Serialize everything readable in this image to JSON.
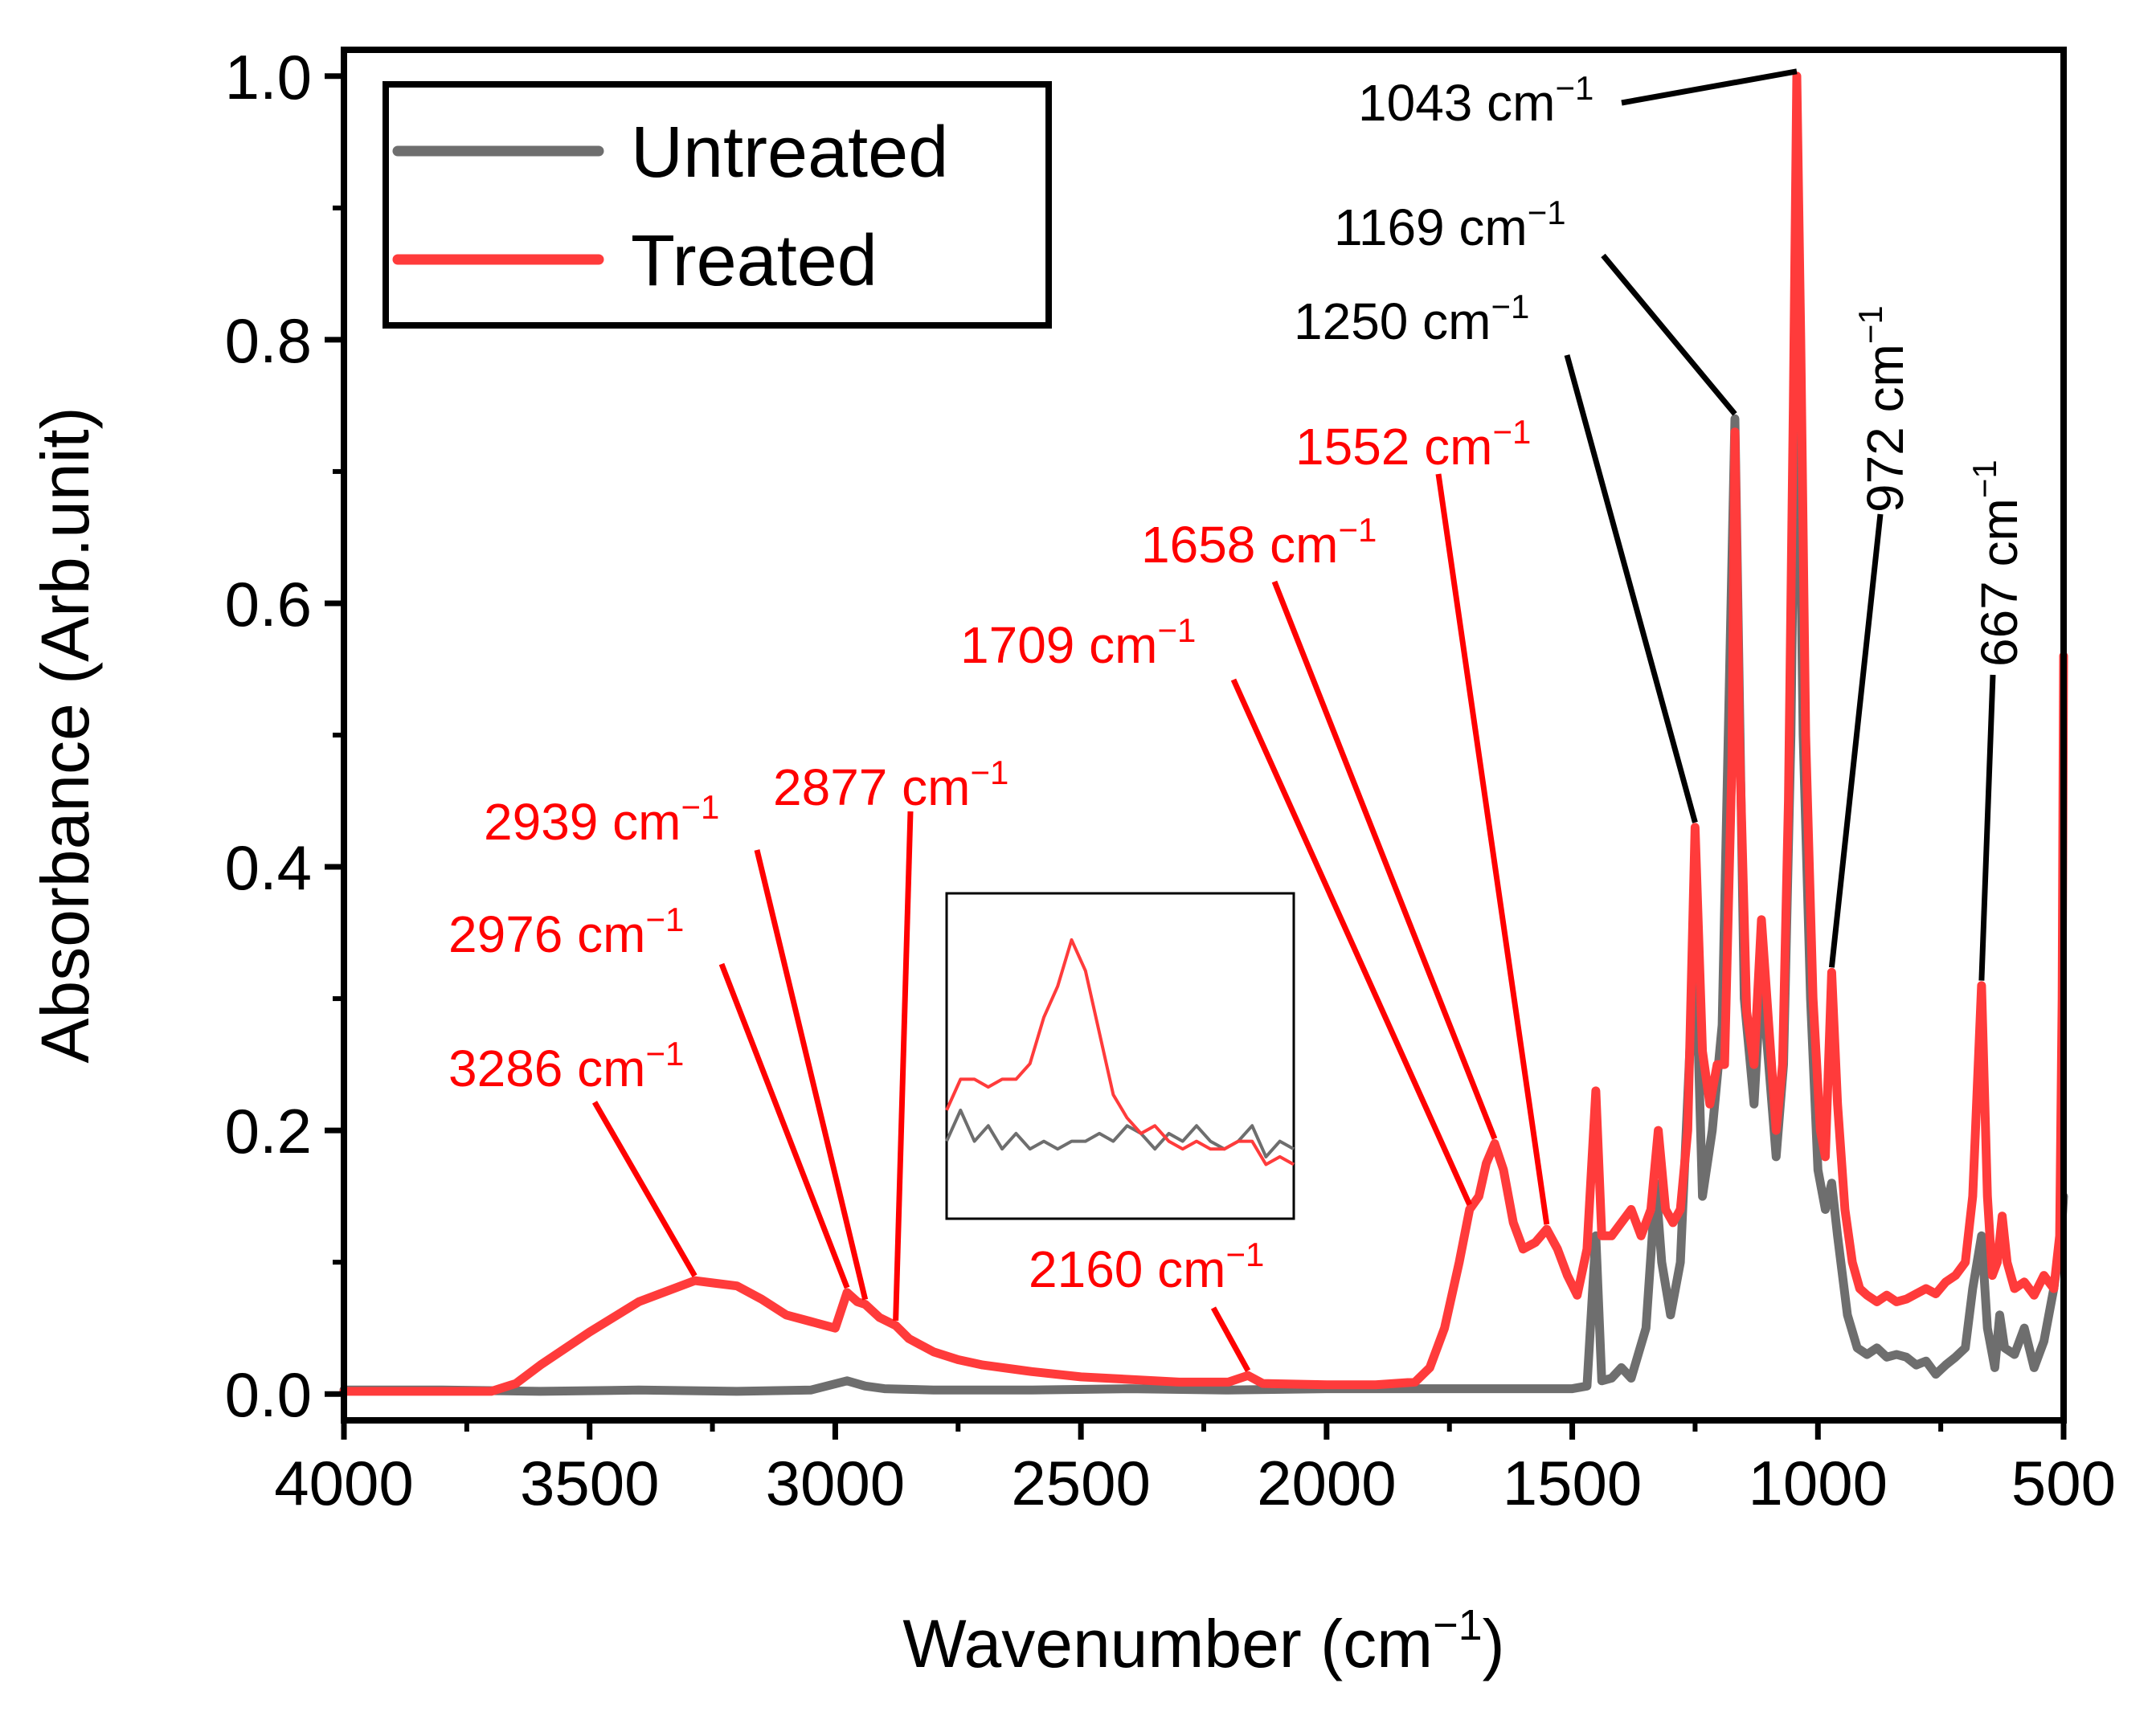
{
  "chart_data": {
    "type": "line",
    "title": "",
    "xlabel": "Wavenumber (cm",
    "xlabel_sup": "−1",
    "xlabel_tail": ")",
    "ylabel": "Absorbance (Arb.unit)",
    "xlim": [
      4000,
      500
    ],
    "ylim": [
      -0.02,
      1.02
    ],
    "x_ticks": [
      4000,
      3500,
      3000,
      2500,
      2000,
      1500,
      1000,
      500
    ],
    "x_tick_labels": [
      "4000",
      "3500",
      "3000",
      "2500",
      "2000",
      "1500",
      "1000",
      "500"
    ],
    "y_ticks": [
      0.0,
      0.2,
      0.4,
      0.6,
      0.8,
      1.0
    ],
    "y_tick_labels": [
      "0.0",
      "0.2",
      "0.4",
      "0.6",
      "0.8",
      "1.0"
    ],
    "legend": {
      "position": "top-left",
      "entries": [
        {
          "label": "Untreated",
          "color": "#6e6e6e"
        },
        {
          "label": "Treated",
          "color": "#ff3b3b"
        }
      ]
    },
    "series": [
      {
        "name": "Untreated",
        "color": "#6e6e6e",
        "points": [
          [
            4000,
            0.003
          ],
          [
            3800,
            0.003
          ],
          [
            3600,
            0.002
          ],
          [
            3400,
            0.003
          ],
          [
            3200,
            0.002
          ],
          [
            3050,
            0.003
          ],
          [
            2976,
            0.01
          ],
          [
            2939,
            0.006
          ],
          [
            2900,
            0.004
          ],
          [
            2800,
            0.003
          ],
          [
            2600,
            0.003
          ],
          [
            2400,
            0.004
          ],
          [
            2200,
            0.003
          ],
          [
            2000,
            0.004
          ],
          [
            1800,
            0.004
          ],
          [
            1600,
            0.004
          ],
          [
            1500,
            0.004
          ],
          [
            1470,
            0.006
          ],
          [
            1452,
            0.12
          ],
          [
            1440,
            0.01
          ],
          [
            1420,
            0.012
          ],
          [
            1400,
            0.02
          ],
          [
            1380,
            0.012
          ],
          [
            1350,
            0.05
          ],
          [
            1330,
            0.16
          ],
          [
            1318,
            0.1
          ],
          [
            1300,
            0.06
          ],
          [
            1280,
            0.1
          ],
          [
            1250,
            0.35
          ],
          [
            1235,
            0.15
          ],
          [
            1215,
            0.2
          ],
          [
            1195,
            0.28
          ],
          [
            1169,
            0.74
          ],
          [
            1150,
            0.3
          ],
          [
            1130,
            0.22
          ],
          [
            1115,
            0.32
          ],
          [
            1100,
            0.25
          ],
          [
            1085,
            0.18
          ],
          [
            1070,
            0.25
          ],
          [
            1055,
            0.5
          ],
          [
            1043,
            0.86
          ],
          [
            1030,
            0.5
          ],
          [
            1015,
            0.3
          ],
          [
            1000,
            0.17
          ],
          [
            985,
            0.14
          ],
          [
            972,
            0.16
          ],
          [
            960,
            0.12
          ],
          [
            940,
            0.06
          ],
          [
            920,
            0.035
          ],
          [
            900,
            0.03
          ],
          [
            880,
            0.035
          ],
          [
            860,
            0.028
          ],
          [
            840,
            0.03
          ],
          [
            820,
            0.028
          ],
          [
            800,
            0.022
          ],
          [
            780,
            0.025
          ],
          [
            760,
            0.015
          ],
          [
            740,
            0.022
          ],
          [
            720,
            0.028
          ],
          [
            700,
            0.035
          ],
          [
            685,
            0.08
          ],
          [
            667,
            0.12
          ],
          [
            655,
            0.05
          ],
          [
            640,
            0.02
          ],
          [
            630,
            0.06
          ],
          [
            620,
            0.035
          ],
          [
            600,
            0.03
          ],
          [
            580,
            0.05
          ],
          [
            560,
            0.02
          ],
          [
            540,
            0.04
          ],
          [
            520,
            0.08
          ],
          [
            505,
            0.12
          ],
          [
            500,
            0.15
          ]
        ]
      },
      {
        "name": "Treated",
        "color": "#ff3b3b",
        "points": [
          [
            4000,
            0.002
          ],
          [
            3800,
            0.002
          ],
          [
            3700,
            0.002
          ],
          [
            3650,
            0.008
          ],
          [
            3600,
            0.022
          ],
          [
            3500,
            0.047
          ],
          [
            3400,
            0.07
          ],
          [
            3286,
            0.086
          ],
          [
            3200,
            0.082
          ],
          [
            3150,
            0.072
          ],
          [
            3100,
            0.06
          ],
          [
            3050,
            0.055
          ],
          [
            3000,
            0.05
          ],
          [
            2976,
            0.077
          ],
          [
            2955,
            0.07
          ],
          [
            2939,
            0.068
          ],
          [
            2910,
            0.058
          ],
          [
            2877,
            0.052
          ],
          [
            2850,
            0.042
          ],
          [
            2800,
            0.032
          ],
          [
            2750,
            0.026
          ],
          [
            2700,
            0.022
          ],
          [
            2600,
            0.017
          ],
          [
            2500,
            0.013
          ],
          [
            2400,
            0.011
          ],
          [
            2300,
            0.009
          ],
          [
            2200,
            0.009
          ],
          [
            2160,
            0.014
          ],
          [
            2130,
            0.008
          ],
          [
            2000,
            0.007
          ],
          [
            1900,
            0.007
          ],
          [
            1820,
            0.009
          ],
          [
            1790,
            0.02
          ],
          [
            1760,
            0.05
          ],
          [
            1730,
            0.1
          ],
          [
            1709,
            0.14
          ],
          [
            1690,
            0.15
          ],
          [
            1675,
            0.175
          ],
          [
            1658,
            0.19
          ],
          [
            1640,
            0.17
          ],
          [
            1620,
            0.13
          ],
          [
            1600,
            0.11
          ],
          [
            1575,
            0.115
          ],
          [
            1552,
            0.125
          ],
          [
            1530,
            0.11
          ],
          [
            1510,
            0.09
          ],
          [
            1490,
            0.075
          ],
          [
            1470,
            0.11
          ],
          [
            1452,
            0.23
          ],
          [
            1440,
            0.12
          ],
          [
            1420,
            0.12
          ],
          [
            1400,
            0.13
          ],
          [
            1380,
            0.14
          ],
          [
            1360,
            0.12
          ],
          [
            1340,
            0.14
          ],
          [
            1325,
            0.2
          ],
          [
            1310,
            0.14
          ],
          [
            1295,
            0.13
          ],
          [
            1280,
            0.14
          ],
          [
            1265,
            0.2
          ],
          [
            1250,
            0.43
          ],
          [
            1235,
            0.26
          ],
          [
            1220,
            0.22
          ],
          [
            1205,
            0.25
          ],
          [
            1190,
            0.25
          ],
          [
            1175,
            0.48
          ],
          [
            1169,
            0.73
          ],
          [
            1160,
            0.5
          ],
          [
            1145,
            0.29
          ],
          [
            1130,
            0.25
          ],
          [
            1115,
            0.36
          ],
          [
            1100,
            0.28
          ],
          [
            1085,
            0.2
          ],
          [
            1072,
            0.25
          ],
          [
            1060,
            0.45
          ],
          [
            1050,
            0.75
          ],
          [
            1043,
            1.0
          ],
          [
            1035,
            0.8
          ],
          [
            1025,
            0.5
          ],
          [
            1010,
            0.3
          ],
          [
            995,
            0.2
          ],
          [
            985,
            0.18
          ],
          [
            972,
            0.32
          ],
          [
            960,
            0.22
          ],
          [
            945,
            0.14
          ],
          [
            930,
            0.1
          ],
          [
            915,
            0.08
          ],
          [
            900,
            0.075
          ],
          [
            880,
            0.07
          ],
          [
            860,
            0.075
          ],
          [
            840,
            0.07
          ],
          [
            820,
            0.072
          ],
          [
            800,
            0.076
          ],
          [
            780,
            0.08
          ],
          [
            760,
            0.076
          ],
          [
            740,
            0.085
          ],
          [
            720,
            0.09
          ],
          [
            700,
            0.1
          ],
          [
            685,
            0.15
          ],
          [
            667,
            0.31
          ],
          [
            655,
            0.15
          ],
          [
            645,
            0.09
          ],
          [
            635,
            0.1
          ],
          [
            625,
            0.135
          ],
          [
            615,
            0.1
          ],
          [
            600,
            0.08
          ],
          [
            580,
            0.085
          ],
          [
            560,
            0.075
          ],
          [
            540,
            0.09
          ],
          [
            520,
            0.08
          ],
          [
            508,
            0.12
          ],
          [
            503,
            0.3
          ],
          [
            500,
            0.56
          ]
        ]
      }
    ],
    "annotations": [
      {
        "text": "1043 cm",
        "sup": "−1",
        "color": "#000000",
        "peak_x": 1043,
        "peak_y": 1.0,
        "rotate": false
      },
      {
        "text": "1169 cm",
        "sup": "−1",
        "color": "#000000",
        "peak_x": 1169,
        "peak_y": 0.74,
        "rotate": false
      },
      {
        "text": "1250 cm",
        "sup": "−1",
        "color": "#000000",
        "peak_x": 1250,
        "peak_y": 0.43,
        "rotate": false
      },
      {
        "text": "972 cm",
        "sup": "−1",
        "color": "#000000",
        "peak_x": 972,
        "peak_y": 0.32,
        "rotate": true
      },
      {
        "text": "667 cm",
        "sup": "−1",
        "color": "#000000",
        "peak_x": 667,
        "peak_y": 0.31,
        "rotate": true
      },
      {
        "text": "1552 cm",
        "sup": "−1",
        "color": "#ff0000",
        "peak_x": 1552,
        "peak_y": 0.125,
        "rotate": false
      },
      {
        "text": "1658 cm",
        "sup": "−1",
        "color": "#ff0000",
        "peak_x": 1658,
        "peak_y": 0.19,
        "rotate": false
      },
      {
        "text": "1709 cm",
        "sup": "−1",
        "color": "#ff0000",
        "peak_x": 1709,
        "peak_y": 0.14,
        "rotate": false
      },
      {
        "text": "2877 cm",
        "sup": "−1",
        "color": "#ff0000",
        "peak_x": 2877,
        "peak_y": 0.052,
        "rotate": false
      },
      {
        "text": "2939 cm",
        "sup": "−1",
        "color": "#ff0000",
        "peak_x": 2939,
        "peak_y": 0.068,
        "rotate": false
      },
      {
        "text": "2976 cm",
        "sup": "−1",
        "color": "#ff0000",
        "peak_x": 2976,
        "peak_y": 0.077,
        "rotate": false
      },
      {
        "text": "3286 cm",
        "sup": "−1",
        "color": "#ff0000",
        "peak_x": 3286,
        "peak_y": 0.086,
        "rotate": false
      },
      {
        "text": "2160 cm",
        "sup": "−1",
        "color": "#ff0000",
        "peak_x": 2160,
        "peak_y": 0.014,
        "rotate": false
      }
    ],
    "inset": {
      "description_region": "2160 band zoom",
      "series": [
        {
          "name": "Untreated",
          "color": "#6e6e6e",
          "values": [
            0.2,
            0.22,
            0.2,
            0.21,
            0.195,
            0.205,
            0.195,
            0.2,
            0.195,
            0.2,
            0.2,
            0.205,
            0.2,
            0.21,
            0.205,
            0.195,
            0.205,
            0.2,
            0.21,
            0.2,
            0.195,
            0.2,
            0.21,
            0.19,
            0.2,
            0.195
          ]
        },
        {
          "name": "Treated",
          "color": "#ff3b3b",
          "values": [
            0.22,
            0.24,
            0.24,
            0.235,
            0.24,
            0.24,
            0.25,
            0.28,
            0.3,
            0.33,
            0.31,
            0.27,
            0.23,
            0.215,
            0.205,
            0.21,
            0.2,
            0.195,
            0.2,
            0.195,
            0.195,
            0.2,
            0.2,
            0.185,
            0.19,
            0.185
          ]
        }
      ]
    }
  }
}
